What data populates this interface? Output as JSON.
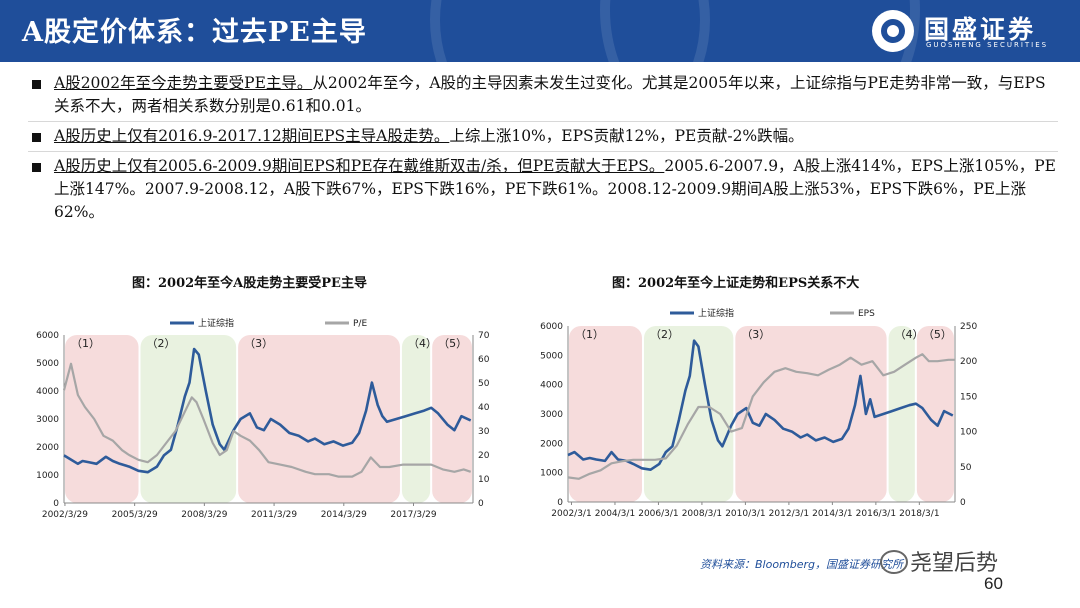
{
  "header": {
    "title": "A股定价体系：过去PE主导"
  },
  "logo": {
    "name": "国盛证券",
    "sub": "GUOSHENG SECURITIES"
  },
  "bullets": [
    {
      "highlight": "A股2002年至今走势主要受PE主导。",
      "text": "从2002年至今，A股的主导因素未发生过变化。尤其是2005年以来，上证综指与PE走势非常一致，与EPS关系不大，两者相关系数分别是0.61和0.01。"
    },
    {
      "highlight": "A股历史上仅有2016.9-2017.12期间EPS主导A股走势。",
      "text": "上综上涨10%，EPS贡献12%，PE贡献-2%跌幅。"
    },
    {
      "highlight": "A股历史上仅有2005.6-2009.9期间EPS和PE存在戴维斯双击/杀，但PE贡献大于EPS。",
      "text": "2005.6-2007.9，A股上涨414%，EPS上涨105%，PE上涨147%。2007.9-2008.12，A股下跌67%，EPS下跌16%，PE下跌61%。2008.12-2009.9期间A股上涨53%，EPS下跌6%，PE上涨62%。"
    }
  ],
  "colors": {
    "index": "#2e5b9a",
    "secondary": "#a6a6a6",
    "pink": "#f6dcdc",
    "green": "#e9f2e0"
  },
  "chart_data": [
    {
      "type": "line",
      "title": "图：2002年至今A股走势主要受PE主导",
      "ylim": [
        0,
        6000
      ],
      "y2lim": [
        0,
        70
      ],
      "yticks": [
        0,
        1000,
        2000,
        3000,
        4000,
        5000,
        6000
      ],
      "y2ticks": [
        0,
        10,
        20,
        30,
        40,
        50,
        60,
        70
      ],
      "x_range": [
        2002.2,
        2019.8
      ],
      "xticks": [
        {
          "label": "2002/3/29",
          "x": 2002.24
        },
        {
          "label": "2005/3/29",
          "x": 2005.24
        },
        {
          "label": "2008/3/29",
          "x": 2008.24
        },
        {
          "label": "2011/3/29",
          "x": 2011.24
        },
        {
          "label": "2014/3/29",
          "x": 2014.24
        },
        {
          "label": "2017/3/29",
          "x": 2017.24
        }
      ],
      "legend_position": "top",
      "regions": [
        {
          "label": "（1）",
          "x0": 2002.2,
          "x1": 2005.45,
          "color": "pink"
        },
        {
          "label": "（2）",
          "x0": 2005.45,
          "x1": 2009.65,
          "color": "green"
        },
        {
          "label": "（3）",
          "x0": 2009.65,
          "x1": 2016.7,
          "color": "pink"
        },
        {
          "label": "（4）",
          "x0": 2016.7,
          "x1": 2018.0,
          "color": "green"
        },
        {
          "label": "（5）",
          "x0": 2018.0,
          "x1": 2019.8,
          "color": "pink"
        }
      ],
      "series": [
        {
          "name": "上证综指",
          "axis": "left",
          "color": "index",
          "x": [
            2002.2,
            2002.5,
            2002.8,
            2003.0,
            2003.3,
            2003.6,
            2004.0,
            2004.3,
            2004.6,
            2005.0,
            2005.4,
            2005.8,
            2006.2,
            2006.5,
            2006.8,
            2007.1,
            2007.4,
            2007.6,
            2007.8,
            2008.0,
            2008.3,
            2008.6,
            2008.9,
            2009.1,
            2009.5,
            2009.8,
            2010.2,
            2010.5,
            2010.8,
            2011.1,
            2011.5,
            2011.9,
            2012.3,
            2012.7,
            2013.0,
            2013.4,
            2013.8,
            2014.2,
            2014.6,
            2014.9,
            2015.2,
            2015.45,
            2015.7,
            2015.9,
            2016.1,
            2016.5,
            2016.9,
            2017.3,
            2017.7,
            2018.0,
            2018.3,
            2018.7,
            2019.0,
            2019.3,
            2019.7
          ],
          "y": [
            1700,
            1550,
            1400,
            1500,
            1450,
            1400,
            1650,
            1500,
            1400,
            1300,
            1150,
            1100,
            1300,
            1700,
            1900,
            2800,
            3800,
            4300,
            5500,
            5300,
            4000,
            2800,
            2100,
            1900,
            2600,
            3000,
            3200,
            2700,
            2600,
            3000,
            2800,
            2500,
            2400,
            2200,
            2300,
            2100,
            2200,
            2050,
            2150,
            2500,
            3300,
            4300,
            3500,
            3100,
            2900,
            3000,
            3100,
            3200,
            3300,
            3400,
            3200,
            2800,
            2600,
            3100,
            2950
          ]
        },
        {
          "name": "P/E",
          "axis": "right",
          "color": "secondary",
          "x": [
            2002.2,
            2002.5,
            2002.8,
            2003.1,
            2003.5,
            2003.9,
            2004.3,
            2004.7,
            2005.0,
            2005.4,
            2005.8,
            2006.2,
            2006.6,
            2007.0,
            2007.4,
            2007.7,
            2007.9,
            2008.2,
            2008.6,
            2008.9,
            2009.2,
            2009.5,
            2009.8,
            2010.2,
            2010.6,
            2011.0,
            2011.5,
            2012.0,
            2012.6,
            2013.0,
            2013.6,
            2014.0,
            2014.6,
            2015.0,
            2015.4,
            2015.8,
            2016.2,
            2016.8,
            2017.4,
            2018.0,
            2018.5,
            2019.0,
            2019.4,
            2019.7
          ],
          "y": [
            47,
            58,
            45,
            40,
            35,
            28,
            26,
            22,
            20,
            18,
            17,
            20,
            25,
            30,
            38,
            44,
            42,
            35,
            25,
            20,
            22,
            30,
            28,
            26,
            22,
            17,
            16,
            15,
            13,
            12,
            12,
            11,
            11,
            13,
            19,
            15,
            15,
            16,
            16,
            16,
            14,
            13,
            14,
            13
          ]
        }
      ]
    },
    {
      "type": "line",
      "title": "图：2002年至今上证走势和EPS关系不大",
      "ylim": [
        0,
        6000
      ],
      "y2lim": [
        0,
        250
      ],
      "yticks": [
        0,
        1000,
        2000,
        3000,
        4000,
        5000,
        6000
      ],
      "y2ticks": [
        0,
        50,
        100,
        150,
        200,
        250
      ],
      "x_range": [
        2002.0,
        2019.8
      ],
      "xticks": [
        {
          "label": "2002/3/1",
          "x": 2002.16
        },
        {
          "label": "2004/3/1",
          "x": 2004.16
        },
        {
          "label": "2006/3/1",
          "x": 2006.16
        },
        {
          "label": "2008/3/1",
          "x": 2008.16
        },
        {
          "label": "2010/3/1",
          "x": 2010.16
        },
        {
          "label": "2012/3/1",
          "x": 2012.16
        },
        {
          "label": "2014/3/1",
          "x": 2014.16
        },
        {
          "label": "2016/3/1",
          "x": 2016.16
        },
        {
          "label": "2018/3/1",
          "x": 2018.16
        }
      ],
      "legend_position": "top",
      "regions": [
        {
          "label": "（1）",
          "x0": 2002.0,
          "x1": 2005.45,
          "color": "pink"
        },
        {
          "label": "（2）",
          "x0": 2005.45,
          "x1": 2009.65,
          "color": "green"
        },
        {
          "label": "（3）",
          "x0": 2009.65,
          "x1": 2016.7,
          "color": "pink"
        },
        {
          "label": "（4）",
          "x0": 2016.7,
          "x1": 2018.0,
          "color": "green"
        },
        {
          "label": "（5）",
          "x0": 2018.0,
          "x1": 2019.8,
          "color": "pink"
        }
      ],
      "series": [
        {
          "name": "上证综指",
          "axis": "left",
          "color": "index",
          "x": [
            2002.0,
            2002.3,
            2002.7,
            2003.0,
            2003.3,
            2003.7,
            2004.0,
            2004.3,
            2004.7,
            2005.0,
            2005.4,
            2005.8,
            2006.2,
            2006.5,
            2006.8,
            2007.1,
            2007.4,
            2007.6,
            2007.8,
            2008.0,
            2008.3,
            2008.6,
            2008.9,
            2009.1,
            2009.5,
            2009.8,
            2010.2,
            2010.5,
            2010.8,
            2011.1,
            2011.5,
            2011.9,
            2012.3,
            2012.7,
            2013.0,
            2013.4,
            2013.8,
            2014.2,
            2014.6,
            2014.9,
            2015.2,
            2015.45,
            2015.7,
            2015.9,
            2016.1,
            2016.5,
            2016.9,
            2017.3,
            2017.7,
            2018.0,
            2018.3,
            2018.7,
            2019.0,
            2019.3,
            2019.7
          ],
          "y": [
            1600,
            1700,
            1450,
            1500,
            1450,
            1400,
            1700,
            1450,
            1400,
            1300,
            1150,
            1100,
            1300,
            1700,
            1900,
            2800,
            3800,
            4300,
            5500,
            5300,
            4000,
            2800,
            2100,
            1900,
            2600,
            3000,
            3200,
            2700,
            2600,
            3000,
            2800,
            2500,
            2400,
            2200,
            2300,
            2100,
            2200,
            2050,
            2150,
            2500,
            3300,
            4300,
            3000,
            3500,
            2900,
            3000,
            3100,
            3200,
            3300,
            3350,
            3200,
            2800,
            2600,
            3100,
            2950
          ]
        },
        {
          "name": "EPS",
          "axis": "right",
          "color": "secondary",
          "x": [
            2002.0,
            2002.5,
            2003.0,
            2003.5,
            2004.0,
            2004.5,
            2005.0,
            2005.5,
            2006.0,
            2006.5,
            2007.0,
            2007.5,
            2008.0,
            2008.5,
            2009.0,
            2009.5,
            2010.0,
            2010.5,
            2011.0,
            2011.5,
            2012.0,
            2012.5,
            2013.0,
            2013.5,
            2014.0,
            2014.5,
            2015.0,
            2015.5,
            2016.0,
            2016.5,
            2017.0,
            2017.5,
            2018.0,
            2018.3,
            2018.6,
            2019.0,
            2019.5,
            2019.8
          ],
          "y": [
            35,
            33,
            40,
            45,
            55,
            58,
            60,
            60,
            60,
            62,
            80,
            110,
            135,
            135,
            125,
            100,
            105,
            150,
            170,
            185,
            190,
            185,
            183,
            180,
            188,
            195,
            205,
            195,
            200,
            180,
            185,
            195,
            205,
            210,
            200,
            200,
            202,
            202
          ]
        }
      ]
    }
  ],
  "source": "资料来源：Bloomberg，国盛证券研究所",
  "watermark": "尧望后势",
  "page_number": "60"
}
